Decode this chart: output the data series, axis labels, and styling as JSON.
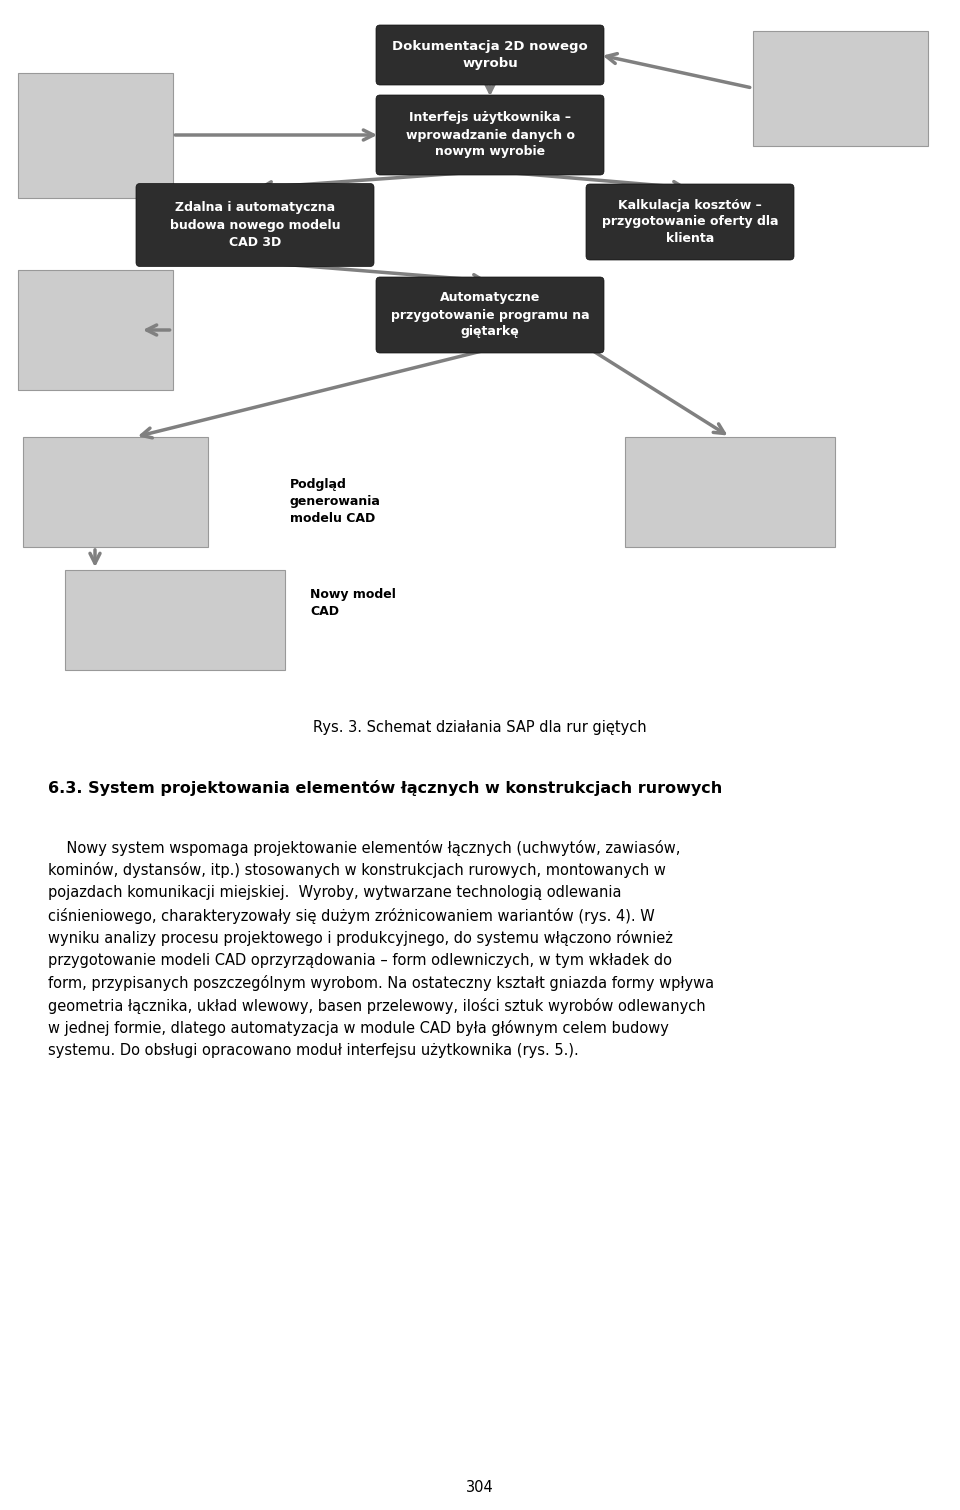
{
  "page_bg": "#ffffff",
  "fig_caption": "Rys. 3. Schemat działania SAP dla rur giętych",
  "section_heading": "6.3. System projektowania elementów łącznych w konstrukcjach rurowych",
  "paragraph_text": "Nowy system wspomaga projektowanie elementów łącznych (uchwytów, zawiasów, kominów, dystansów, itp.) stosowanych w konstrukcjach rurowych, montowanych w pojazdach komunikacji miejskiej.  Wyroby, wytwarzane technologią odlewania ciśnieniowego, charakteryzowały się dużym zróżnicowaniem wariantów (rys. 4). W wyniku analizy procesu projektowego i produkcyjnego, do systemu włączono również przygotowanie modeli CAD oprzyrzqdowania – form odlewniczych, w tym wkładek do form, przypisanych poszczególnym wyrobom. Na ostateczny kształt gniazda formy wpływa geometria łącznika, układ wlewowy, basen przelewowy, ilości sztuk wyrobów odlewanych w jednej formie, dlatego automatyzacja w module CAD była głównym celem budowy systemu. Do obsługi opracowano moduł interfejsu użytkownika (rys. 5.).",
  "page_number": "304",
  "box_color": "#2d2d2d",
  "box_text_color": "#ffffff",
  "arrow_color": "#808080"
}
